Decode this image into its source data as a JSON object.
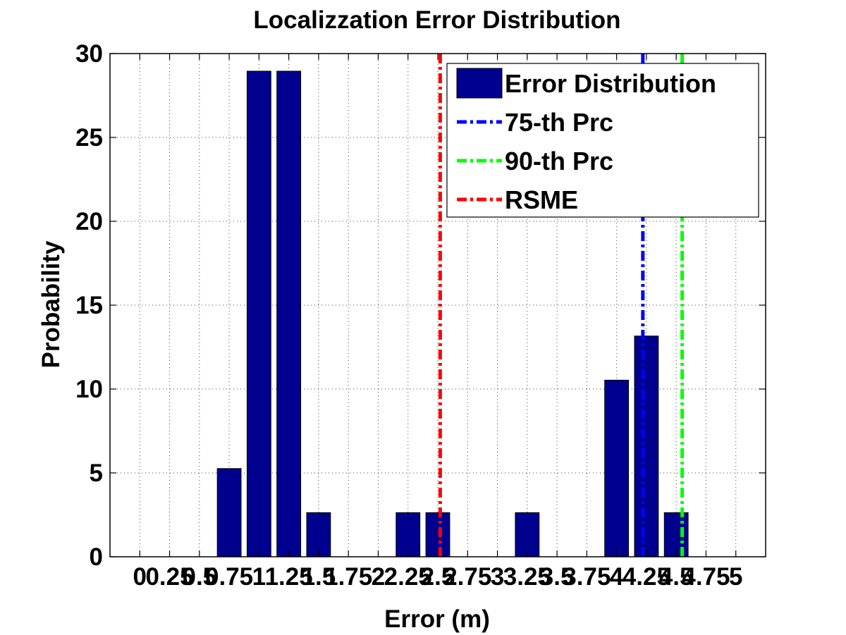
{
  "chart_data": {
    "type": "bar",
    "title": "Localizzation Error Distribution",
    "xlabel": "Error (m)",
    "ylabel": "Probability",
    "xlim": [
      -0.25,
      5.25
    ],
    "ylim": [
      0,
      30
    ],
    "xticks": [
      0,
      0.25,
      0.5,
      0.75,
      1,
      1.25,
      1.5,
      1.75,
      2,
      2.25,
      2.5,
      2.75,
      3,
      3.25,
      3.5,
      3.75,
      4,
      4.25,
      4.5,
      4.75,
      5
    ],
    "xtick_labels": [
      "0",
      "0.25",
      "0.5",
      "0.75",
      "1",
      "1.25",
      "1.5",
      "1.75",
      "2",
      "2.25",
      "2.5",
      "2.75",
      "3",
      "3.25",
      "3.5",
      "3.75",
      "4",
      "4.25",
      "4.5",
      "4.75",
      "5"
    ],
    "yticks": [
      0,
      5,
      10,
      15,
      20,
      25,
      30
    ],
    "ytick_labels": [
      "0",
      "5",
      "10",
      "15",
      "20",
      "25",
      "30"
    ],
    "grid": true,
    "bar_width": 0.2,
    "series": [
      {
        "name": "Error Distribution",
        "color": "#00008f",
        "x": [
          0.75,
          1.0,
          1.25,
          1.5,
          2.25,
          2.5,
          3.25,
          4.0,
          4.25,
          4.5
        ],
        "values": [
          5.26,
          28.95,
          28.95,
          2.63,
          2.63,
          2.63,
          2.63,
          10.53,
          13.16,
          2.63
        ]
      }
    ],
    "vlines": [
      {
        "name": "75-th Prc",
        "x": 4.22,
        "color": "#0000ff",
        "style": "dash-dot"
      },
      {
        "name": "90-th Prc",
        "x": 4.55,
        "color": "#00ff00",
        "style": "dash-dot"
      },
      {
        "name": "RSME",
        "x": 2.52,
        "color": "#ff0000",
        "style": "dash-dot"
      }
    ],
    "legend_position": "top-right"
  }
}
